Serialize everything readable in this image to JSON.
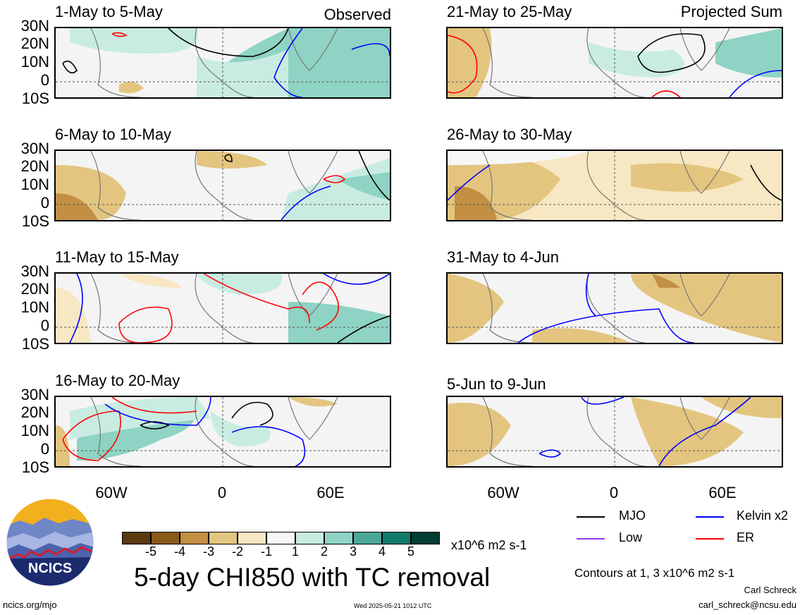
{
  "panels": [
    {
      "title": "1-May to 5-May",
      "tag": "Observed"
    },
    {
      "title": "21-May to 25-May",
      "tag": "Projected Sum"
    },
    {
      "title": "6-May to 10-May",
      "tag": ""
    },
    {
      "title": "26-May to 30-May",
      "tag": ""
    },
    {
      "title": "11-May to 15-May",
      "tag": ""
    },
    {
      "title": "31-May to 4-Jun",
      "tag": ""
    },
    {
      "title": "16-May to 20-May",
      "tag": ""
    },
    {
      "title": "5-Jun to 9-Jun",
      "tag": ""
    }
  ],
  "lat_labels": [
    "30N",
    "20N",
    "10N",
    "0",
    "10S"
  ],
  "lon_labels": [
    "60W",
    "0",
    "60E"
  ],
  "legend": {
    "mjo": "MJO",
    "kelvin": "Kelvin x2",
    "low": "Low",
    "er": "ER",
    "colors": {
      "mjo": "#000000",
      "kelvin": "#0000ff",
      "low": "#9933ff",
      "er": "#ff0000"
    }
  },
  "colorbar": {
    "labels": [
      "-5",
      "-4",
      "-3",
      "-2",
      "-1",
      "1",
      "2",
      "3",
      "4",
      "5"
    ],
    "unit": "x10^6 m2 s-1",
    "colors": [
      "#5a3a0e",
      "#8a5a1a",
      "#c28f43",
      "#e3c57f",
      "#f7e7c2",
      "#f7f7f7",
      "#c9ece2",
      "#8ed3c3",
      "#4ba898",
      "#137a6e",
      "#003d33"
    ]
  },
  "main_title": "5-day CHI850 with TC removal",
  "contours_note": "Contours at 1, 3 x10^6 m2 s-1",
  "author": "Carl Schreck",
  "email": "carl_schreck@ncsu.edu",
  "site": "ncics.org/mjo",
  "timestamp": "Wed 2025-05-21 1012 UTC",
  "logo_text": "NCICS"
}
